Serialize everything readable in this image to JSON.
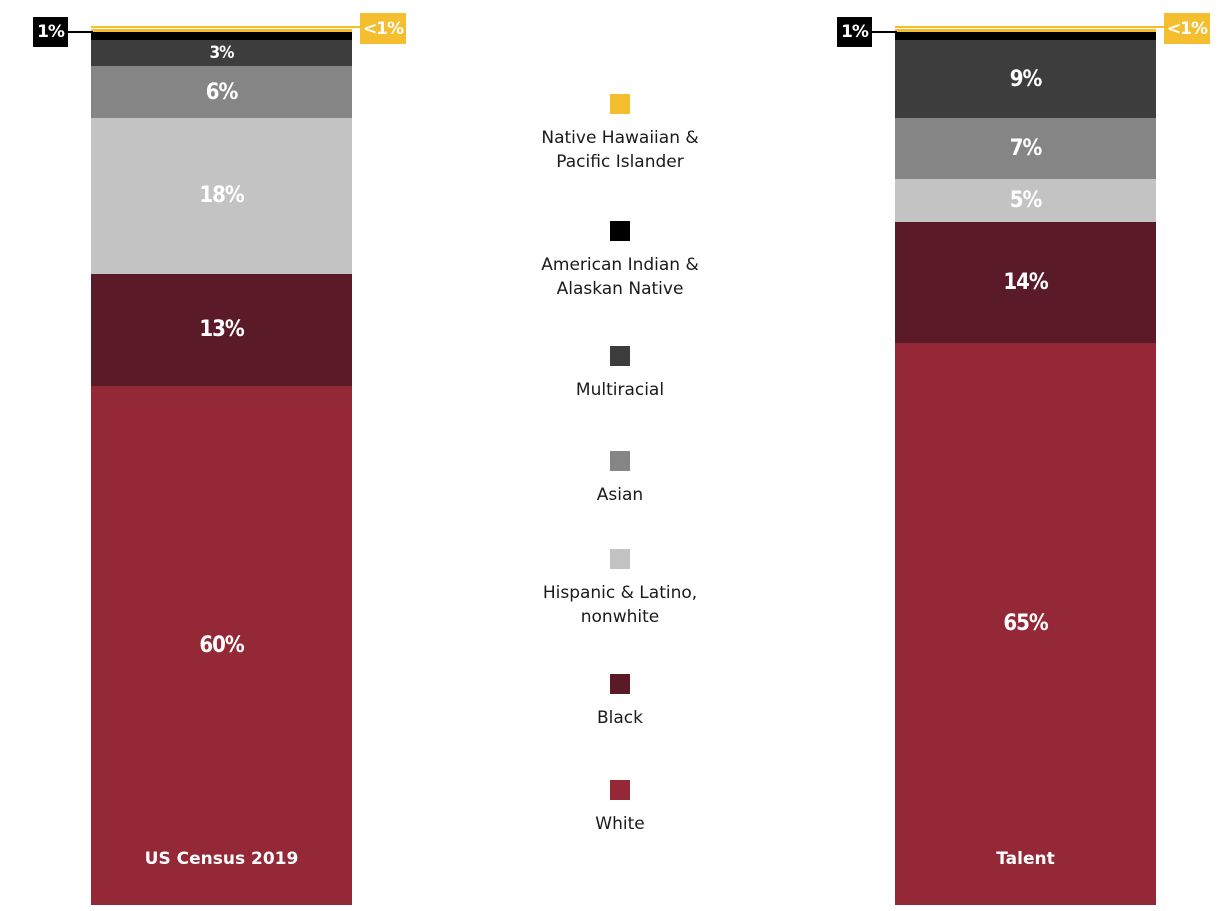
{
  "chart_data": {
    "type": "bar",
    "stacked": true,
    "categories": [
      "US Census 2019",
      "Talent"
    ],
    "series": [
      {
        "name": "Native Hawaiian & Pacific Islander",
        "color": "#f5be2e",
        "values": [
          0.3,
          0.3
        ],
        "labels": [
          "<1%",
          "<1%"
        ]
      },
      {
        "name": "American Indian & Alaskan Native",
        "color": "#000000",
        "values": [
          1,
          1
        ],
        "labels": [
          "1%",
          "1%"
        ]
      },
      {
        "name": "Multiracial",
        "color": "#3d3d3d",
        "values": [
          3,
          9
        ],
        "labels": [
          "3%",
          "9%"
        ]
      },
      {
        "name": "Asian",
        "color": "#858585",
        "values": [
          6,
          7
        ],
        "labels": [
          "6%",
          "7%"
        ]
      },
      {
        "name": "Hispanic & Latino, nonwhite",
        "color": "#c3c3c3",
        "values": [
          18,
          5
        ],
        "labels": [
          "18%",
          "5%"
        ]
      },
      {
        "name": "Black",
        "color": "#5b1a28",
        "values": [
          13,
          14
        ],
        "labels": [
          "13%",
          "14%"
        ]
      },
      {
        "name": "White",
        "color": "#942837",
        "values": [
          60,
          65
        ],
        "labels": [
          "60%",
          "65%"
        ]
      }
    ],
    "title": "",
    "xlabel": "",
    "ylabel": "",
    "grid": false,
    "legend_position": "center"
  },
  "legend": {
    "items": [
      {
        "label": "Native Hawaiian &\nPacific Islander",
        "color": "#f5be2e"
      },
      {
        "label": "American Indian &\nAlaskan Native",
        "color": "#000000"
      },
      {
        "label": "Multiracial",
        "color": "#3d3d3d"
      },
      {
        "label": "Asian",
        "color": "#858585"
      },
      {
        "label": "Hispanic & Latino,\nnonwhite",
        "color": "#c3c3c3"
      },
      {
        "label": "Black",
        "color": "#5b1a28"
      },
      {
        "label": "White",
        "color": "#942837"
      }
    ]
  }
}
